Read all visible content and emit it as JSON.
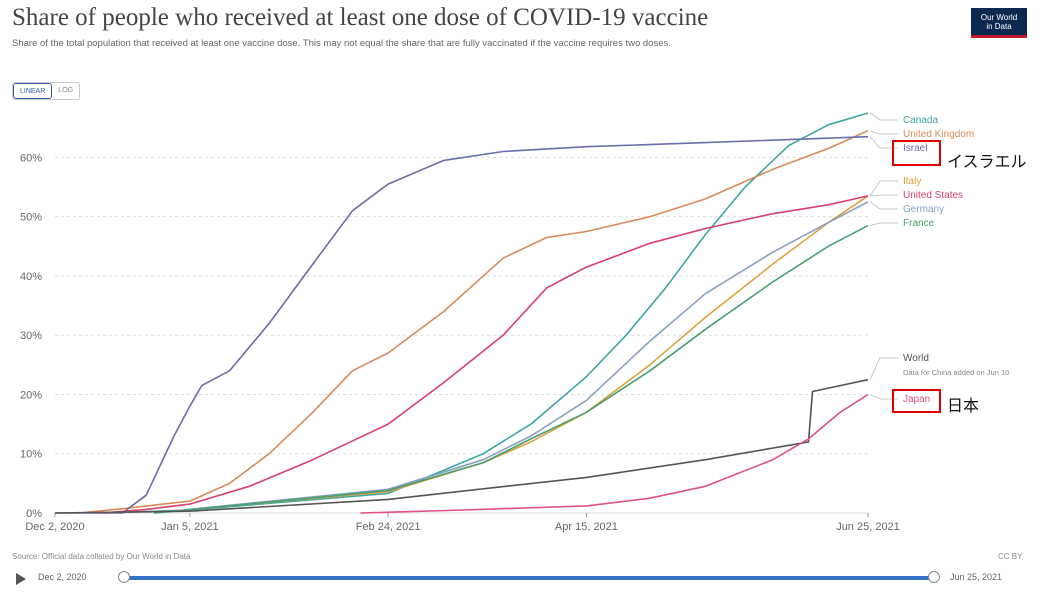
{
  "header": {
    "title": "Share of people who received at least one dose of COVID-19 vaccine",
    "subtitle": "Share of the total population that received at least one vaccine dose. This may not equal the share that are fully vaccinated if the vaccine requires two doses."
  },
  "logo": {
    "line1": "Our World",
    "line2": "in Data"
  },
  "scale_toggle": {
    "linear": "LINEAR",
    "log": "LOG"
  },
  "annotations": {
    "israel": "イスラエル",
    "japan": "日本"
  },
  "world_note": "Data for China added on Jun 10",
  "footer": {
    "source": "Source: Official data collated by Our World in Data",
    "license": "CC BY"
  },
  "timeline": {
    "start": "Dec 2, 2020",
    "end": "Jun 25, 2021"
  },
  "colors": {
    "Israel": "#6a6fa8",
    "United Kingdom": "#d88a5a",
    "Canada": "#3fa6a0",
    "Italy": "#e0a040",
    "United States": "#d9406a",
    "Germany": "#8a9fc0",
    "France": "#48a070",
    "World": "#555555",
    "Japan": "#e0508a",
    "highlight": "#e00000"
  },
  "chart_data": {
    "type": "line",
    "ylabel": "",
    "xlabel": "",
    "x_ticks": [
      "Dec 2, 2020",
      "Jan 5, 2021",
      "Feb 24, 2021",
      "Apr 15, 2021",
      "Jun 25, 2021"
    ],
    "y_ticks": [
      "0%",
      "10%",
      "20%",
      "30%",
      "40%",
      "50%",
      "60%"
    ],
    "ylim": [
      0,
      68
    ],
    "xlim": [
      "2020-12-02",
      "2021-06-25"
    ],
    "grid": "horizontal",
    "legend": "end-labels-right",
    "series": [
      {
        "name": "Canada",
        "points": [
          [
            "2020-12-14",
            0
          ],
          [
            "2021-01-05",
            0.5
          ],
          [
            "2021-02-24",
            3.3
          ],
          [
            "2021-03-20",
            10
          ],
          [
            "2021-04-01",
            15
          ],
          [
            "2021-04-15",
            23
          ],
          [
            "2021-04-25",
            30
          ],
          [
            "2021-05-05",
            38
          ],
          [
            "2021-05-15",
            47
          ],
          [
            "2021-05-25",
            55
          ],
          [
            "2021-06-05",
            62
          ],
          [
            "2021-06-15",
            65.5
          ],
          [
            "2021-06-25",
            67.5
          ]
        ]
      },
      {
        "name": "United Kingdom",
        "points": [
          [
            "2020-12-08",
            0
          ],
          [
            "2020-12-20",
            0.8
          ],
          [
            "2021-01-05",
            2
          ],
          [
            "2021-01-15",
            5
          ],
          [
            "2021-01-25",
            10
          ],
          [
            "2021-02-05",
            17
          ],
          [
            "2021-02-15",
            24
          ],
          [
            "2021-02-24",
            27
          ],
          [
            "2021-03-10",
            34
          ],
          [
            "2021-03-25",
            43
          ],
          [
            "2021-04-05",
            46.5
          ],
          [
            "2021-04-15",
            47.5
          ],
          [
            "2021-05-01",
            50
          ],
          [
            "2021-05-15",
            53
          ],
          [
            "2021-06-01",
            58
          ],
          [
            "2021-06-15",
            61.5
          ],
          [
            "2021-06-25",
            64.5
          ]
        ]
      },
      {
        "name": "Israel",
        "points": [
          [
            "2020-12-02",
            0
          ],
          [
            "2020-12-19",
            0
          ],
          [
            "2020-12-25",
            3
          ],
          [
            "2021-01-01",
            13
          ],
          [
            "2021-01-05",
            18
          ],
          [
            "2021-01-08",
            21.5
          ],
          [
            "2021-01-15",
            24
          ],
          [
            "2021-01-25",
            32
          ],
          [
            "2021-02-05",
            42
          ],
          [
            "2021-02-15",
            51
          ],
          [
            "2021-02-24",
            55.5
          ],
          [
            "2021-03-10",
            59.5
          ],
          [
            "2021-03-25",
            61
          ],
          [
            "2021-04-15",
            61.8
          ],
          [
            "2021-05-15",
            62.5
          ],
          [
            "2021-06-25",
            63.5
          ]
        ]
      },
      {
        "name": "Italy",
        "points": [
          [
            "2020-12-27",
            0
          ],
          [
            "2021-01-15",
            1.2
          ],
          [
            "2021-02-24",
            3.6
          ],
          [
            "2021-03-20",
            8.5
          ],
          [
            "2021-04-01",
            12
          ],
          [
            "2021-04-15",
            17
          ],
          [
            "2021-05-01",
            25
          ],
          [
            "2021-05-15",
            33
          ],
          [
            "2021-06-01",
            42
          ],
          [
            "2021-06-15",
            49
          ],
          [
            "2021-06-25",
            53.5
          ]
        ]
      },
      {
        "name": "United States",
        "points": [
          [
            "2020-12-14",
            0
          ],
          [
            "2020-12-25",
            0.6
          ],
          [
            "2021-01-05",
            1.5
          ],
          [
            "2021-01-20",
            4.5
          ],
          [
            "2021-02-05",
            9
          ],
          [
            "2021-02-24",
            15
          ],
          [
            "2021-03-10",
            22
          ],
          [
            "2021-03-25",
            30
          ],
          [
            "2021-04-05",
            38
          ],
          [
            "2021-04-15",
            41.5
          ],
          [
            "2021-05-01",
            45.5
          ],
          [
            "2021-05-15",
            48
          ],
          [
            "2021-06-01",
            50.5
          ],
          [
            "2021-06-15",
            52
          ],
          [
            "2021-06-25",
            53.5
          ]
        ]
      },
      {
        "name": "Germany",
        "points": [
          [
            "2020-12-27",
            0
          ],
          [
            "2021-01-15",
            1.3
          ],
          [
            "2021-02-24",
            4
          ],
          [
            "2021-03-20",
            9
          ],
          [
            "2021-04-01",
            13
          ],
          [
            "2021-04-15",
            19
          ],
          [
            "2021-05-01",
            29
          ],
          [
            "2021-05-15",
            37
          ],
          [
            "2021-06-01",
            44
          ],
          [
            "2021-06-15",
            49
          ],
          [
            "2021-06-25",
            52.5
          ]
        ]
      },
      {
        "name": "France",
        "points": [
          [
            "2020-12-27",
            0
          ],
          [
            "2021-01-15",
            1.2
          ],
          [
            "2021-02-24",
            3.8
          ],
          [
            "2021-03-20",
            8.5
          ],
          [
            "2021-04-01",
            12.5
          ],
          [
            "2021-04-15",
            17
          ],
          [
            "2021-05-01",
            24
          ],
          [
            "2021-05-15",
            31
          ],
          [
            "2021-06-01",
            39
          ],
          [
            "2021-06-15",
            45
          ],
          [
            "2021-06-25",
            48.5
          ]
        ]
      },
      {
        "name": "World",
        "points": [
          [
            "2020-12-02",
            0
          ],
          [
            "2021-01-05",
            0.3
          ],
          [
            "2021-02-24",
            2.3
          ],
          [
            "2021-04-15",
            6
          ],
          [
            "2021-05-15",
            9
          ],
          [
            "2021-06-10",
            12
          ],
          [
            "2021-06-11",
            20.5
          ],
          [
            "2021-06-25",
            22.5
          ]
        ]
      },
      {
        "name": "Japan",
        "points": [
          [
            "2021-02-17",
            0
          ],
          [
            "2021-03-15",
            0.5
          ],
          [
            "2021-04-15",
            1.2
          ],
          [
            "2021-05-01",
            2.5
          ],
          [
            "2021-05-15",
            4.5
          ],
          [
            "2021-06-01",
            9
          ],
          [
            "2021-06-10",
            12.5
          ],
          [
            "2021-06-18",
            17
          ],
          [
            "2021-06-25",
            20
          ]
        ]
      }
    ],
    "end_labels": [
      "Canada",
      "United Kingdom",
      "Israel",
      "Italy",
      "United States",
      "Germany",
      "France",
      "World",
      "Japan"
    ]
  }
}
